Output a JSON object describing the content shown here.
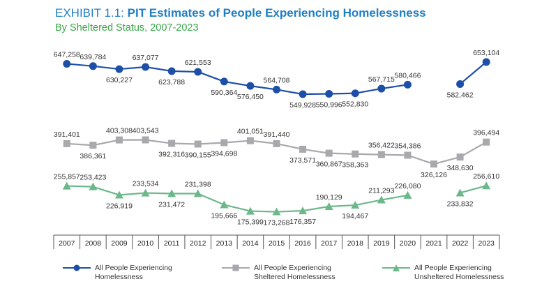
{
  "title": {
    "exhibit": "EXHIBIT 1.1:",
    "main": "PIT Estimates of People Experiencing Homelessness",
    "subtitle": "By Sheltered Status, 2007-2023"
  },
  "legend": {
    "all": [
      "All People Experiencing",
      "Homelessness"
    ],
    "sheltered": [
      "All People Experiencing",
      "Sheltered Homelessness"
    ],
    "unsheltered": [
      "All People Experiencing",
      "Unsheltered Homelessness"
    ]
  },
  "chart_data": {
    "type": "line",
    "categories": [
      "2007",
      "2008",
      "2009",
      "2010",
      "2011",
      "2012",
      "2013",
      "2014",
      "2015",
      "2016",
      "2017",
      "2018",
      "2019",
      "2020",
      "2021",
      "2022",
      "2023"
    ],
    "series": [
      {
        "name": "All People Experiencing Homelessness",
        "color": "#1d4fa8",
        "marker": "circle",
        "values": [
          647258,
          639784,
          630227,
          637077,
          623788,
          621553,
          590364,
          576450,
          564708,
          549928,
          550996,
          552830,
          567715,
          580466,
          null,
          582462,
          653104
        ],
        "labels": [
          "647,258",
          "639,784",
          "630,227",
          "637,077",
          "623,788",
          "621,553",
          "590,364",
          "576,450",
          "564,708",
          "549,928",
          "550,996",
          "552,830",
          "567,715",
          "580,466",
          "",
          "582,462",
          "653,104"
        ]
      },
      {
        "name": "All People Experiencing Sheltered Homelessness",
        "color": "#a8a8ad",
        "marker": "square",
        "values": [
          391401,
          386361,
          403308,
          403543,
          392316,
          390155,
          394698,
          401051,
          391440,
          373571,
          360867,
          358363,
          356422,
          354386,
          326126,
          348630,
          396494
        ],
        "labels": [
          "391,401",
          "386,361",
          "403,308",
          "403,543",
          "392,316",
          "390,155",
          "394,698",
          "401,051",
          "391,440",
          "373,571",
          "360,867",
          "358,363",
          "356,422",
          "354,386",
          "326,126",
          "348,630",
          "396,494"
        ]
      },
      {
        "name": "All People Experiencing Unsheltered Homelessness",
        "color": "#6cb88a",
        "marker": "triangle",
        "values": [
          255857,
          253423,
          226919,
          233534,
          231472,
          231398,
          195666,
          175399,
          173268,
          176357,
          190129,
          194467,
          211293,
          226080,
          null,
          233832,
          256610
        ],
        "labels": [
          "255,857",
          "253,423",
          "226,919",
          "233,534",
          "231,472",
          "231,398",
          "195,666",
          "175,399",
          "173,268",
          "176,357",
          "190,129",
          "194,467",
          "211,293",
          "226,080",
          "",
          "233,832",
          "256,610"
        ]
      }
    ],
    "grid": false
  }
}
